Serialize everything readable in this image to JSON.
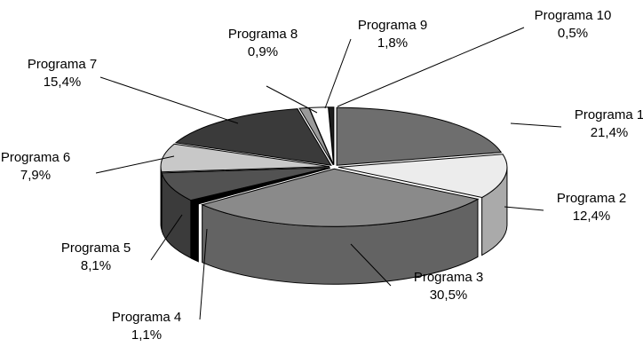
{
  "chart_data": {
    "type": "pie",
    "variant": "3d-exploded-perspective",
    "title": "",
    "legend": "none",
    "slices": [
      {
        "label": "Programa 1",
        "value": 21.4,
        "pct": "21,4%",
        "fill": "#6e6e6e"
      },
      {
        "label": "Programa 2",
        "value": 12.4,
        "pct": "12,4%",
        "fill": "#ececec"
      },
      {
        "label": "Programa 3",
        "value": 30.5,
        "pct": "30,5%",
        "fill": "#8a8a8a"
      },
      {
        "label": "Programa 4",
        "value": 1.1,
        "pct": "1,1%",
        "fill": "#000000"
      },
      {
        "label": "Programa 5",
        "value": 8.1,
        "pct": "8,1%",
        "fill": "#525252"
      },
      {
        "label": "Programa 6",
        "value": 7.9,
        "pct": "7,9%",
        "fill": "#c8c8c8"
      },
      {
        "label": "Programa 7",
        "value": 15.4,
        "pct": "15,4%",
        "fill": "#3a3a3a"
      },
      {
        "label": "Programa 8",
        "value": 0.9,
        "pct": "0,9%",
        "fill": "#9a9a9a"
      },
      {
        "label": "Programa 9",
        "value": 1.8,
        "pct": "1,8%",
        "fill": "#ffffff"
      },
      {
        "label": "Programa 10",
        "value": 0.5,
        "pct": "0,5%",
        "fill": "#1e1e1e"
      }
    ]
  }
}
